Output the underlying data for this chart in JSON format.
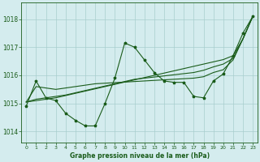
{
  "title": "Graphe pression niveau de la mer (hPa)",
  "bg_color": "#d4ecee",
  "grid_color": "#a8cece",
  "line_color": "#1a5c1a",
  "xlim": [
    -0.5,
    23.5
  ],
  "ylim": [
    1013.6,
    1018.6
  ],
  "yticks": [
    1014,
    1015,
    1016,
    1017,
    1018
  ],
  "xticks": [
    0,
    1,
    2,
    3,
    4,
    5,
    6,
    7,
    8,
    9,
    10,
    11,
    12,
    13,
    14,
    15,
    16,
    17,
    18,
    19,
    20,
    21,
    22,
    23
  ],
  "zigzag": [
    1014.9,
    1015.8,
    1015.2,
    1015.1,
    1014.65,
    1014.4,
    1014.2,
    1014.2,
    1015.0,
    1015.9,
    1017.15,
    1017.0,
    1016.55,
    1016.1,
    1015.8,
    1015.75,
    1015.75,
    1015.25,
    1015.2,
    1015.8,
    1016.05,
    1016.7,
    1017.5,
    1018.1
  ],
  "line1": [
    1015.05,
    1015.1,
    1015.15,
    1015.2,
    1015.28,
    1015.36,
    1015.44,
    1015.52,
    1015.6,
    1015.68,
    1015.76,
    1015.84,
    1015.92,
    1016.0,
    1016.08,
    1016.16,
    1016.24,
    1016.32,
    1016.4,
    1016.48,
    1016.56,
    1016.7,
    1017.3,
    1018.1
  ],
  "line2": [
    1015.05,
    1015.6,
    1015.55,
    1015.5,
    1015.55,
    1015.6,
    1015.65,
    1015.7,
    1015.72,
    1015.74,
    1015.76,
    1015.78,
    1015.8,
    1015.82,
    1015.84,
    1015.86,
    1015.88,
    1015.9,
    1015.95,
    1016.1,
    1016.2,
    1016.55,
    1017.3,
    1018.1
  ],
  "line3": [
    1015.05,
    1015.15,
    1015.2,
    1015.25,
    1015.3,
    1015.38,
    1015.46,
    1015.54,
    1015.62,
    1015.7,
    1015.78,
    1015.86,
    1015.9,
    1015.94,
    1015.98,
    1016.02,
    1016.06,
    1016.1,
    1016.18,
    1016.3,
    1016.4,
    1016.6,
    1017.3,
    1018.1
  ]
}
